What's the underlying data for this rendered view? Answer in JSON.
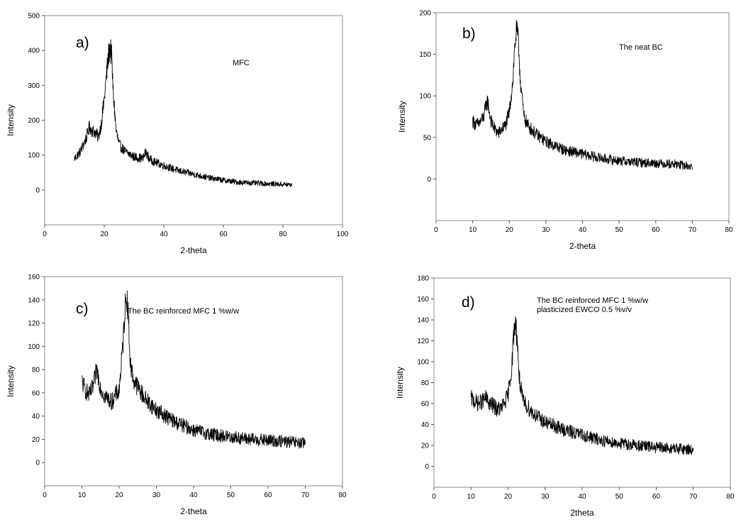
{
  "chart_data": [
    {
      "type": "line",
      "panel_label": "a)",
      "annotation_lines": [
        "MFC"
      ],
      "xlabel": "2-theta",
      "ylabel": "Intensity",
      "xlim": [
        0,
        100
      ],
      "ylim": [
        -100,
        500
      ],
      "xticks": [
        0,
        20,
        40,
        60,
        80,
        100
      ],
      "yticks": [
        0,
        100,
        200,
        300,
        400,
        500
      ],
      "series": [
        {
          "color": "#000000",
          "noise": 12,
          "x": [
            10,
            12,
            14,
            15,
            16,
            17,
            18,
            19,
            20,
            21,
            21.5,
            22,
            22.5,
            23,
            24,
            25,
            27,
            30,
            33,
            34,
            35,
            37,
            40,
            45,
            50,
            55,
            60,
            65,
            70,
            75,
            80,
            83
          ],
          "y": [
            90,
            110,
            150,
            180,
            170,
            165,
            150,
            190,
            260,
            350,
            390,
            410,
            380,
            280,
            170,
            130,
            110,
            95,
            90,
            110,
            90,
            80,
            70,
            55,
            45,
            35,
            28,
            22,
            20,
            18,
            16,
            15
          ]
        }
      ]
    },
    {
      "type": "line",
      "panel_label": "b)",
      "annotation_lines": [
        "The neat BC"
      ],
      "xlabel": "2-theta",
      "ylabel": "Intensity",
      "xlim": [
        0,
        80
      ],
      "ylim": [
        -50,
        200
      ],
      "xticks": [
        0,
        10,
        20,
        30,
        40,
        50,
        60,
        70,
        80
      ],
      "yticks": [
        0,
        50,
        100,
        150,
        200
      ],
      "series": [
        {
          "color": "#000000",
          "noise": 9,
          "x": [
            10,
            11,
            12,
            13,
            14,
            15,
            16,
            17,
            18,
            19,
            20,
            21,
            21.5,
            22,
            22.5,
            23,
            24,
            25,
            27,
            30,
            35,
            40,
            45,
            50,
            55,
            60,
            65,
            70
          ],
          "y": [
            70,
            65,
            68,
            75,
            95,
            70,
            60,
            55,
            60,
            65,
            80,
            120,
            160,
            180,
            165,
            120,
            75,
            65,
            55,
            45,
            35,
            30,
            25,
            22,
            20,
            19,
            18,
            15
          ]
        }
      ]
    },
    {
      "type": "line",
      "panel_label": "c)",
      "annotation_lines": [
        "The BC reinforced MFC 1 %w/w"
      ],
      "xlabel": "2-theta",
      "ylabel": "Intensity",
      "xlim": [
        0,
        80
      ],
      "ylim": [
        -20,
        160
      ],
      "xticks": [
        0,
        10,
        20,
        30,
        40,
        50,
        60,
        70,
        80
      ],
      "yticks": [
        0,
        20,
        40,
        60,
        80,
        100,
        120,
        140,
        160
      ],
      "series": [
        {
          "color": "#000000",
          "noise": 9,
          "x": [
            10,
            11,
            12,
            13,
            14,
            15,
            16,
            17,
            18,
            19,
            20,
            21,
            21.5,
            22,
            22.5,
            23,
            24,
            25,
            27,
            30,
            35,
            40,
            45,
            50,
            55,
            60,
            65,
            70
          ],
          "y": [
            70,
            62,
            58,
            65,
            80,
            65,
            58,
            55,
            52,
            58,
            62,
            100,
            130,
            145,
            125,
            85,
            70,
            65,
            55,
            45,
            35,
            28,
            24,
            22,
            20,
            19,
            18,
            16
          ]
        }
      ]
    },
    {
      "type": "line",
      "panel_label": "d)",
      "annotation_lines": [
        "The BC reinforced MFC 1 %w/w",
        "plasticized EWCO 0.5 %v/v"
      ],
      "xlabel": "2theta",
      "ylabel": "Intensity",
      "xlim": [
        0,
        80
      ],
      "ylim": [
        -20,
        180
      ],
      "xticks": [
        0,
        10,
        20,
        30,
        40,
        50,
        60,
        70,
        80
      ],
      "yticks": [
        0,
        20,
        40,
        60,
        80,
        100,
        120,
        140,
        160,
        180
      ],
      "series": [
        {
          "color": "#000000",
          "noise": 9,
          "x": [
            10,
            11,
            12,
            13,
            14,
            15,
            16,
            17,
            18,
            19,
            20,
            21,
            21.5,
            22,
            22.5,
            23,
            24,
            25,
            27,
            30,
            35,
            40,
            45,
            50,
            55,
            60,
            65,
            70
          ],
          "y": [
            65,
            62,
            60,
            62,
            65,
            60,
            58,
            55,
            55,
            60,
            68,
            95,
            125,
            140,
            120,
            85,
            62,
            58,
            50,
            42,
            35,
            30,
            25,
            22,
            20,
            18,
            17,
            16
          ]
        }
      ]
    }
  ]
}
